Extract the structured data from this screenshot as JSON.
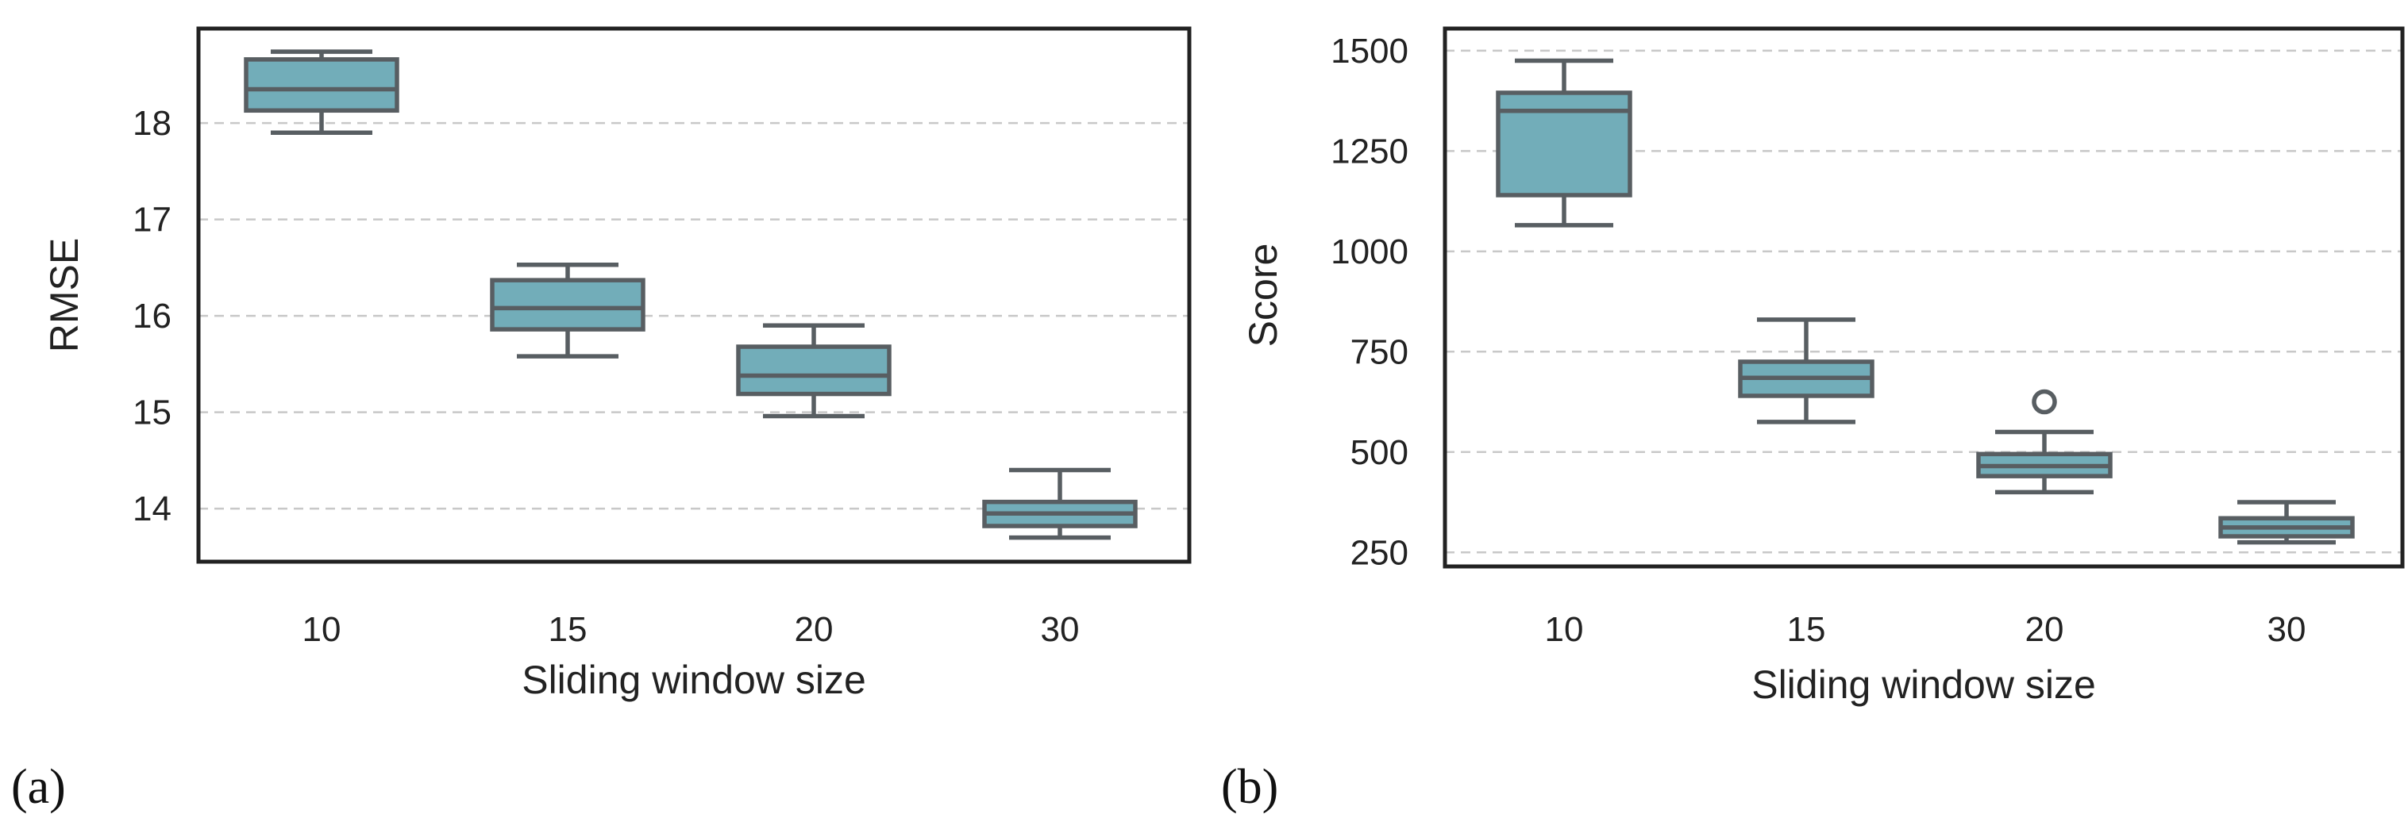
{
  "colors": {
    "box_fill": "#72adb9",
    "box_line": "#585e62"
  },
  "chart_data": [
    {
      "type": "box",
      "panel_label": "(a)",
      "xlabel": "Sliding window size",
      "ylabel": "RMSE",
      "categories": [
        "10",
        "15",
        "20",
        "30"
      ],
      "ylim": [
        13.45,
        18.98
      ],
      "yticks": [
        14,
        15,
        16,
        17,
        18
      ],
      "ytick_labels": [
        "14",
        "15",
        "16",
        "17",
        "18"
      ],
      "grid": true,
      "boxes": [
        {
          "category": "10",
          "whislo": 17.9,
          "q1": 18.13,
          "med": 18.35,
          "q3": 18.66,
          "whishi": 18.74,
          "fliers": []
        },
        {
          "category": "15",
          "whislo": 15.58,
          "q1": 15.86,
          "med": 16.08,
          "q3": 16.37,
          "whishi": 16.53,
          "fliers": []
        },
        {
          "category": "20",
          "whislo": 14.96,
          "q1": 15.19,
          "med": 15.38,
          "q3": 15.68,
          "whishi": 15.9,
          "fliers": []
        },
        {
          "category": "30",
          "whislo": 13.7,
          "q1": 13.82,
          "med": 13.95,
          "q3": 14.07,
          "whishi": 14.4,
          "fliers": []
        }
      ]
    },
    {
      "type": "box",
      "panel_label": "(b)",
      "xlabel": "Sliding window size",
      "ylabel": "Score",
      "categories": [
        "10",
        "15",
        "20",
        "30"
      ],
      "ylim": [
        215,
        1555
      ],
      "yticks": [
        250,
        500,
        750,
        1000,
        1250,
        1500
      ],
      "ytick_labels": [
        "250",
        "500",
        "750",
        "1000",
        "1250",
        "1500"
      ],
      "grid": true,
      "boxes": [
        {
          "category": "10",
          "whislo": 1065,
          "q1": 1140,
          "med": 1350,
          "q3": 1395,
          "whishi": 1475,
          "fliers": []
        },
        {
          "category": "15",
          "whislo": 575,
          "q1": 640,
          "med": 685,
          "q3": 725,
          "whishi": 830,
          "fliers": []
        },
        {
          "category": "20",
          "whislo": 400,
          "q1": 440,
          "med": 465,
          "q3": 495,
          "whishi": 550,
          "fliers": [
            625
          ]
        },
        {
          "category": "30",
          "whislo": 275,
          "q1": 290,
          "med": 312,
          "q3": 335,
          "whishi": 375,
          "fliers": []
        }
      ]
    }
  ]
}
